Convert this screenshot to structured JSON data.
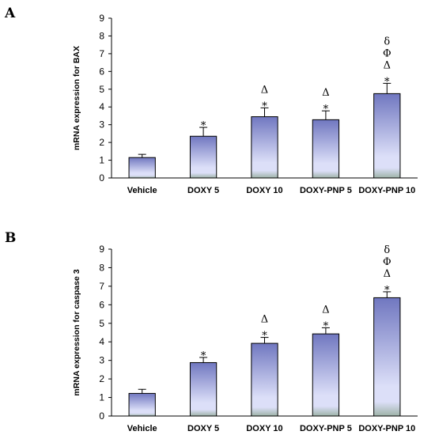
{
  "chart_data": [
    {
      "type": "bar",
      "panel_label": "A",
      "ylabel": "mRNA expression for BAX",
      "ylim": [
        0,
        9
      ],
      "yticks": [
        0,
        1,
        2,
        3,
        4,
        5,
        6,
        7,
        8,
        9
      ],
      "categories": [
        "Vehicle",
        "DOXY 5",
        "DOXY 10",
        "DOXY-PNP 5",
        "DOXY-PNP 10"
      ],
      "values": [
        1.15,
        2.35,
        3.45,
        3.28,
        4.75
      ],
      "errors": [
        0.18,
        0.5,
        0.5,
        0.5,
        0.58
      ],
      "annotations": [
        [],
        [
          "*"
        ],
        [
          "*",
          "Δ"
        ],
        [
          "*",
          "Δ"
        ],
        [
          "*",
          "Δ",
          "Φ",
          "δ"
        ]
      ]
    },
    {
      "type": "bar",
      "panel_label": "B",
      "ylabel": "mRNA expression for caspase 3",
      "ylim": [
        0,
        9
      ],
      "yticks": [
        0,
        1,
        2,
        3,
        4,
        5,
        6,
        7,
        8,
        9
      ],
      "categories": [
        "Vehicle",
        "DOXY 5",
        "DOXY 10",
        "DOXY-PNP 5",
        "DOXY-PNP 10"
      ],
      "values": [
        1.22,
        2.88,
        3.92,
        4.43,
        6.38
      ],
      "errors": [
        0.22,
        0.28,
        0.32,
        0.33,
        0.32
      ],
      "annotations": [
        [],
        [
          "*"
        ],
        [
          "*",
          "Δ"
        ],
        [
          "*",
          "Δ"
        ],
        [
          "*",
          "Δ",
          "Φ",
          "δ"
        ]
      ]
    }
  ],
  "colors": {
    "bar_top": "#7077c0",
    "bar_mid": "#dcdff8",
    "bar_bottom": "#9eb3a8",
    "axis": "#000000"
  }
}
